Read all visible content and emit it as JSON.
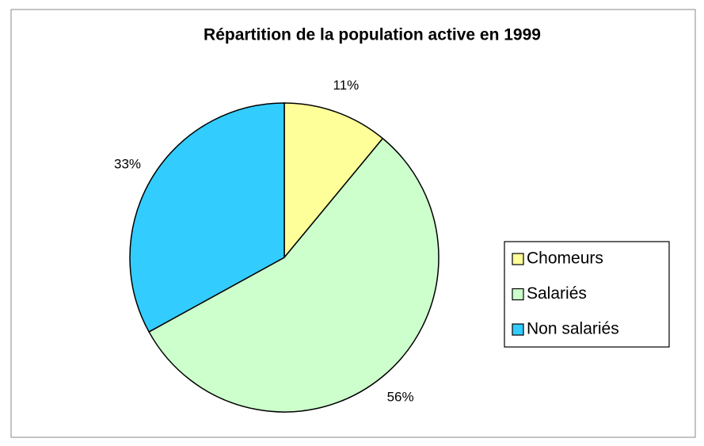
{
  "chart_data": {
    "type": "pie",
    "title": "Répartition de la population active en 1999",
    "categories": [
      "Chomeurs",
      "Salariés",
      "Non salariés"
    ],
    "values": [
      11,
      56,
      33
    ],
    "value_labels": [
      "11%",
      "56%",
      "33%"
    ],
    "colors": [
      "#ffff99",
      "#ccffcc",
      "#33ccff"
    ],
    "legend": "right"
  }
}
